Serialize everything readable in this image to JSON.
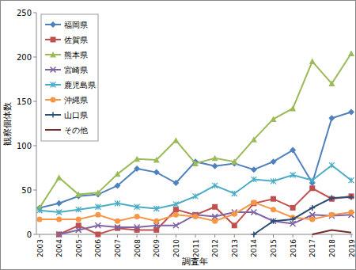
{
  "chart_data": {
    "type": "line",
    "x_label": "調査年",
    "y_label": "観察個体数",
    "categories": [
      "2003",
      "2004",
      "2005",
      "2006",
      "2007",
      "2008",
      "2009",
      "2010",
      "2011",
      "2012",
      "2013",
      "2014",
      "2015",
      "2016",
      "2017",
      "2018",
      "2019"
    ],
    "ylim": [
      0,
      250
    ],
    "yticks": [
      0,
      50,
      100,
      150,
      200,
      250
    ],
    "grid": false,
    "legend": "top-left",
    "series": [
      {
        "name": "福岡県",
        "color": "#4f81bd",
        "marker": "diamond",
        "values": [
          30,
          35,
          43,
          45,
          55,
          74,
          70,
          58,
          82,
          77,
          80,
          73,
          82,
          95,
          58,
          131,
          138
        ]
      },
      {
        "name": "佐賀県",
        "color": "#c0504d",
        "marker": "square",
        "values": [
          null,
          0,
          10,
          0,
          7,
          5,
          5,
          28,
          22,
          31,
          10,
          35,
          40,
          30,
          52,
          40,
          43
        ]
      },
      {
        "name": "熊本県",
        "color": "#9bbb59",
        "marker": "triangle",
        "values": [
          30,
          64,
          45,
          47,
          68,
          85,
          84,
          106,
          80,
          86,
          82,
          107,
          130,
          142,
          195,
          170,
          204
        ]
      },
      {
        "name": "宮崎県",
        "color": "#8064a2",
        "marker": "x",
        "values": [
          null,
          0,
          5,
          10,
          8,
          8,
          10,
          10,
          22,
          20,
          25,
          25,
          15,
          12,
          22,
          21,
          22
        ]
      },
      {
        "name": "鹿児島県",
        "color": "#4bacc6",
        "marker": "star",
        "values": [
          27,
          25,
          28,
          31,
          35,
          31,
          29,
          34,
          43,
          55,
          46,
          62,
          60,
          67,
          61,
          78,
          61
        ]
      },
      {
        "name": "沖縄県",
        "color": "#f79646",
        "marker": "circle",
        "values": [
          17,
          17,
          17,
          22,
          15,
          20,
          15,
          22,
          20,
          15,
          23,
          36,
          28,
          19,
          17,
          22,
          25
        ]
      },
      {
        "name": "山口県",
        "color": "#2c4d75",
        "marker": "plus",
        "values": [
          null,
          null,
          null,
          null,
          null,
          null,
          null,
          null,
          null,
          null,
          null,
          0,
          15,
          17,
          30,
          41,
          42
        ]
      },
      {
        "name": "その他",
        "color": "#772c2a",
        "marker": "none",
        "values": [
          null,
          null,
          null,
          null,
          null,
          null,
          null,
          null,
          null,
          null,
          null,
          null,
          null,
          null,
          0,
          5,
          2
        ]
      }
    ]
  }
}
